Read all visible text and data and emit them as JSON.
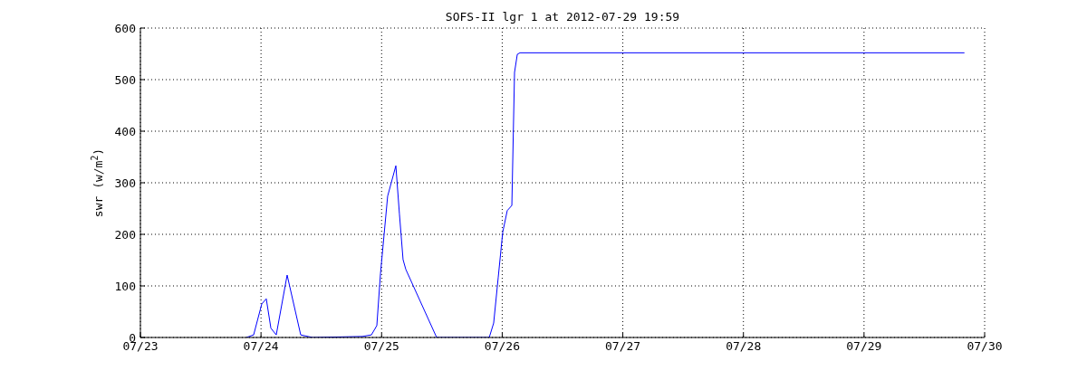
{
  "chart_data": {
    "type": "line",
    "title": "SOFS-II lgr 1 at 2012-07-29 19:59",
    "ylabel": "swr (w/m$^{2}$)",
    "x": [
      "2012-07-23T21:06",
      "2012-07-23T22:32",
      "2012-07-24T00:09",
      "2012-07-24T01:03",
      "2012-07-24T01:58",
      "2012-07-24T03:02",
      "2012-07-24T05:12",
      "2012-07-24T07:54",
      "2012-07-24T10:15",
      "2012-07-24T20:10",
      "2012-07-24T21:58",
      "2012-07-24T23:03",
      "2012-07-24T23:46",
      "2012-07-25T01:12",
      "2012-07-25T02:50",
      "2012-07-25T03:33",
      "2012-07-25T04:16",
      "2012-07-25T04:49",
      "2012-07-25T10:57",
      "2012-07-25T21:25",
      "2012-07-25T22:18",
      "2012-07-25T23:12",
      "2012-07-26T00:06",
      "2012-07-26T01:00",
      "2012-07-26T01:55",
      "2012-07-26T02:27",
      "2012-07-26T03:00",
      "2012-07-26T03:32",
      "2012-07-29T19:59"
    ],
    "series": [
      {
        "color": "#0000ff",
        "values": [
          0,
          5,
          65,
          75,
          18,
          5,
          121,
          5,
          0,
          2,
          5,
          23,
          123,
          274,
          333,
          239,
          151,
          132,
          0,
          0,
          28,
          116,
          204,
          246,
          256,
          514,
          549,
          552,
          552
        ]
      }
    ],
    "xlim": [
      "2012-07-23T00:00",
      "2012-07-30T00:00"
    ],
    "xticks": [
      {
        "value": "2012-07-23T00:00",
        "label": "07/23"
      },
      {
        "value": "2012-07-24T00:00",
        "label": "07/24"
      },
      {
        "value": "2012-07-25T00:00",
        "label": "07/25"
      },
      {
        "value": "2012-07-26T00:00",
        "label": "07/26"
      },
      {
        "value": "2012-07-27T00:00",
        "label": "07/27"
      },
      {
        "value": "2012-07-28T00:00",
        "label": "07/28"
      },
      {
        "value": "2012-07-29T00:00",
        "label": "07/29"
      },
      {
        "value": "2012-07-30T00:00",
        "label": "07/30"
      }
    ],
    "ylim": [
      0,
      600
    ],
    "yticks": [
      0,
      100,
      200,
      300,
      400,
      500,
      600
    ],
    "grid": true,
    "line_style": "solid",
    "marker": "none"
  }
}
